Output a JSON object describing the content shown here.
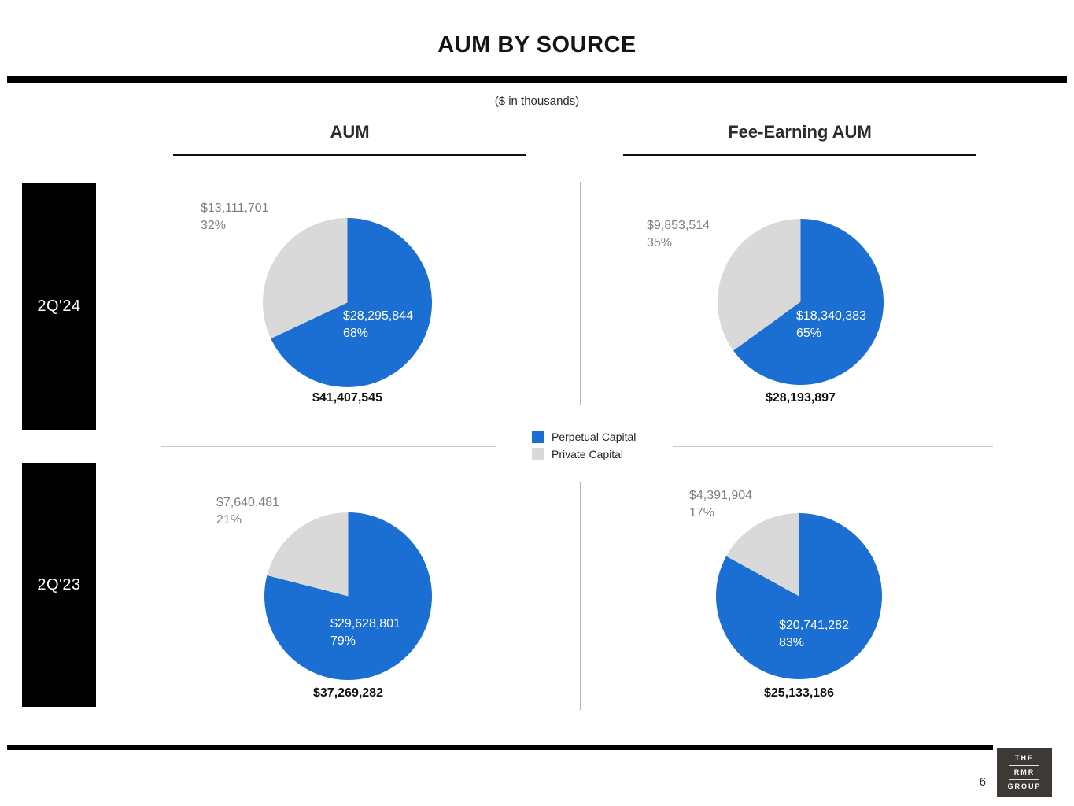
{
  "slide": {
    "title": "AUM BY SOURCE",
    "subtitle": "($ in thousands)",
    "page_number": "6",
    "logo": {
      "line1": "THE",
      "line2": "RMR",
      "line3": "GROUP"
    }
  },
  "columns": [
    {
      "label": "AUM"
    },
    {
      "label": "Fee-Earning AUM"
    }
  ],
  "rows": [
    {
      "label": "2Q'24"
    },
    {
      "label": "2Q'23"
    }
  ],
  "legend": [
    {
      "label": "Perpetual Capital",
      "color": "#1c6fd2"
    },
    {
      "label": "Private Capital",
      "color": "#d9d9d9"
    }
  ],
  "chart_data": [
    {
      "type": "pie",
      "row": "2Q'24",
      "column": "AUM",
      "slices": [
        {
          "label": "Perpetual Capital",
          "value": 28295844,
          "pct": 68,
          "value_text": "$28,295,844",
          "pct_text": "68%"
        },
        {
          "label": "Private Capital",
          "value": 13111701,
          "pct": 32,
          "value_text": "$13,111,701",
          "pct_text": "32%"
        }
      ],
      "total": 41407545,
      "total_text": "$41,407,545"
    },
    {
      "type": "pie",
      "row": "2Q'24",
      "column": "Fee-Earning AUM",
      "slices": [
        {
          "label": "Perpetual Capital",
          "value": 18340383,
          "pct": 65,
          "value_text": "$18,340,383",
          "pct_text": "65%"
        },
        {
          "label": "Private Capital",
          "value": 9853514,
          "pct": 35,
          "value_text": "$9,853,514",
          "pct_text": "35%"
        }
      ],
      "total": 28193897,
      "total_text": "$28,193,897"
    },
    {
      "type": "pie",
      "row": "2Q'23",
      "column": "AUM",
      "slices": [
        {
          "label": "Perpetual Capital",
          "value": 29628801,
          "pct": 79,
          "value_text": "$29,628,801",
          "pct_text": "79%"
        },
        {
          "label": "Private Capital",
          "value": 7640481,
          "pct": 21,
          "value_text": "$7,640,481",
          "pct_text": "21%"
        }
      ],
      "total": 37269282,
      "total_text": "$37,269,282"
    },
    {
      "type": "pie",
      "row": "2Q'23",
      "column": "Fee-Earning AUM",
      "slices": [
        {
          "label": "Perpetual Capital",
          "value": 20741282,
          "pct": 83,
          "value_text": "$20,741,282",
          "pct_text": "83%"
        },
        {
          "label": "Private Capital",
          "value": 4391904,
          "pct": 17,
          "value_text": "$4,391,904",
          "pct_text": "17%"
        }
      ],
      "total": 25133186,
      "total_text": "$25,133,186"
    }
  ]
}
